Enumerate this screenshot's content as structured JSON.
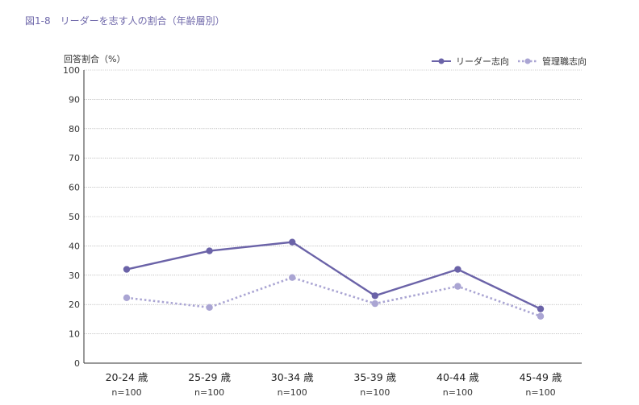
{
  "figure_title": "図1-8　リーダーを志す人の割合（年齢層別）",
  "chart_data": {
    "type": "line",
    "title": "",
    "ylabel": "回答割合（%）",
    "xlabel": "",
    "ylim": [
      0,
      100
    ],
    "yticks": [
      0,
      10,
      20,
      30,
      40,
      50,
      60,
      70,
      80,
      90,
      100
    ],
    "grid": true,
    "legend_position": "top-right",
    "categories": [
      "20-24 歳",
      "25-29 歳",
      "30-34 歳",
      "35-39 歳",
      "40-44 歳",
      "45-49 歳"
    ],
    "sample_sizes": [
      "n=100",
      "n=100",
      "n=100",
      "n=100",
      "n=100",
      "n=100"
    ],
    "series": [
      {
        "name": "リーダー志向",
        "values": [
          32,
          38.3,
          41.3,
          23,
          32,
          18.5
        ],
        "color": "#6b63a8",
        "style": "solid"
      },
      {
        "name": "管理職志向",
        "values": [
          22.3,
          19,
          29.2,
          20.3,
          26.2,
          16
        ],
        "color": "#aaa5d3",
        "style": "dotted"
      }
    ]
  }
}
